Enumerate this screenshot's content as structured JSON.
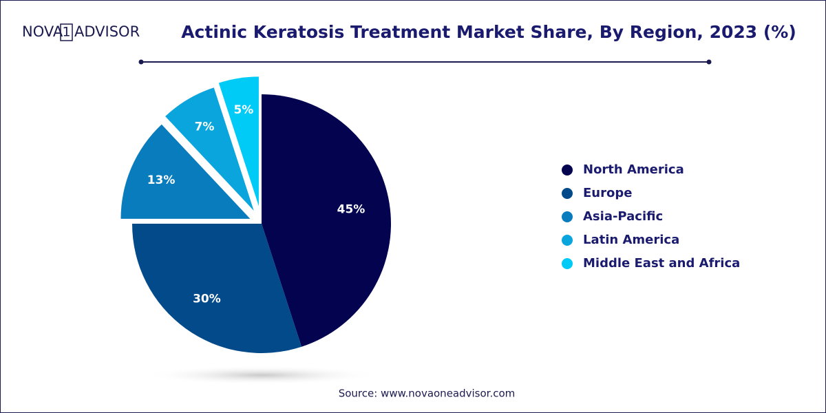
{
  "logo": {
    "left": "NOVA",
    "mid": "1",
    "right": "ADVISOR"
  },
  "chart_data": {
    "type": "pie",
    "title": "Actinic Keratosis Treatment Market Share, By Region, 2023 (%)",
    "categories": [
      "North America",
      "Europe",
      "Asia-Pacific",
      "Latin America",
      "Middle East and Africa"
    ],
    "values": [
      45,
      30,
      13,
      7,
      5
    ],
    "value_labels": [
      "45%",
      "30%",
      "13%",
      "7%",
      "5%"
    ],
    "colors": [
      "#03034f",
      "#034a8a",
      "#087cbd",
      "#0aa5dc",
      "#00cbf7"
    ],
    "legend": "right"
  },
  "source": "Source: www.novaoneadvisor.com"
}
